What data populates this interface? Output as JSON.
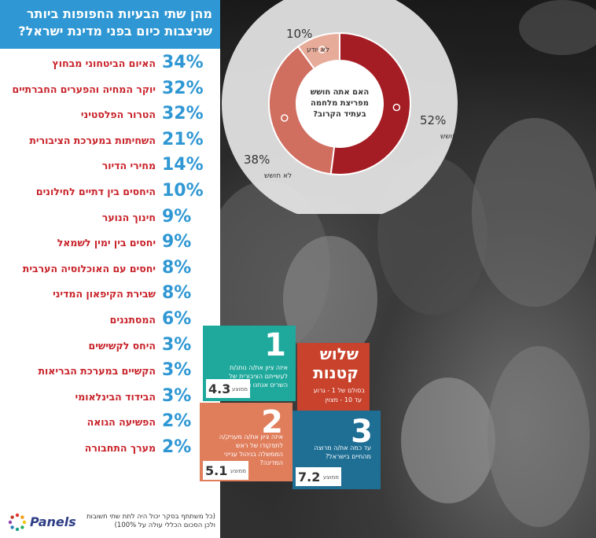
{
  "title_lines": [
    "מהן שתי הבעיות החפופות ביותר",
    "שניצבות כיום בפני מדינת ישראל?"
  ],
  "chart_data": [
    {
      "type": "bar",
      "title": "מהן שתי הבעיות החפופות ביותר שניצבות כיום בפני מדינת ישראל?",
      "categories": [
        "האיום הביטחוני מבחוץ",
        "יוקר המחיה והפערים החברתיים",
        "הטרור הפלסטיני",
        "השחיתות במערכת הציבורית",
        "מחירי הדיור",
        "היחסים בין דתיים לחילונים",
        "חינוך הנוער",
        "יחסים בין ימין לשמאל",
        "יחסים עם האוכלוסיה הערבית",
        "שבירת הקיפאון המדיני",
        "המסתננים",
        "היחס לקשישים",
        "הקשיים במערכת הבריאות",
        "הבידוד הבינלאומי",
        "הפשיעה הגואה",
        "מערך התחבורה"
      ],
      "values": [
        34,
        32,
        32,
        21,
        14,
        10,
        9,
        9,
        8,
        8,
        6,
        3,
        3,
        3,
        2,
        2
      ],
      "value_labels": [
        "34%",
        "32%",
        "32%",
        "21%",
        "14%",
        "10%",
        "9%",
        "9%",
        "8%",
        "8%",
        "6%",
        "3%",
        "3%",
        "3%",
        "2%",
        "2%"
      ],
      "unit": "%"
    },
    {
      "type": "pie",
      "center_text": [
        "האם אתה חושש",
        "מפריצת מלחמה",
        "בעתיד הקרוב?"
      ],
      "categories": [
        "חושש",
        "לא חושש",
        "לא יודע"
      ],
      "values": [
        52,
        38,
        10
      ],
      "value_labels": [
        "52%",
        "38%",
        "10%"
      ],
      "colors": [
        "#a51d24",
        "#d06e60",
        "#e7ab99"
      ]
    }
  ],
  "footnote": "(כל משתתף בסקר יכול היה לתת שתי תשובות ולכן הסכום הכללי עולה על 100%)",
  "logo": {
    "text": "Panels",
    "icon": "panels-star-icon"
  },
  "small_three": {
    "title_lines": [
      "שלוש",
      "קטנות"
    ],
    "subtitle_lines": [
      "בסולם של 1 - גרוע",
      "עד 10 - מצוין"
    ],
    "color": "#c8422c"
  },
  "questions": [
    {
      "number": "1",
      "text": "איזה ציון את/ה נותנ/ת לעשייתם הציבורית של השרים אנחנו הנחו?",
      "avg_label": "ממוצע",
      "avg_value": "4.3",
      "color": "#1fa99d"
    },
    {
      "number": "2",
      "text": "איזה ציון את/ה מעניק/ה לתפקודו של ראש הממשלה בניהול ענייני המדינה?",
      "avg_label": "ממוצע",
      "avg_value": "5.1",
      "color": "#e07e5c"
    },
    {
      "number": "3",
      "text": "עד כמה את/ה מרוצה מהחיים בישראל?",
      "avg_label": "ממוצע",
      "avg_value": "7.2",
      "color": "#1f6f95"
    }
  ],
  "colors": {
    "accent_blue": "#2f97d3",
    "label_red": "#c8242b"
  }
}
